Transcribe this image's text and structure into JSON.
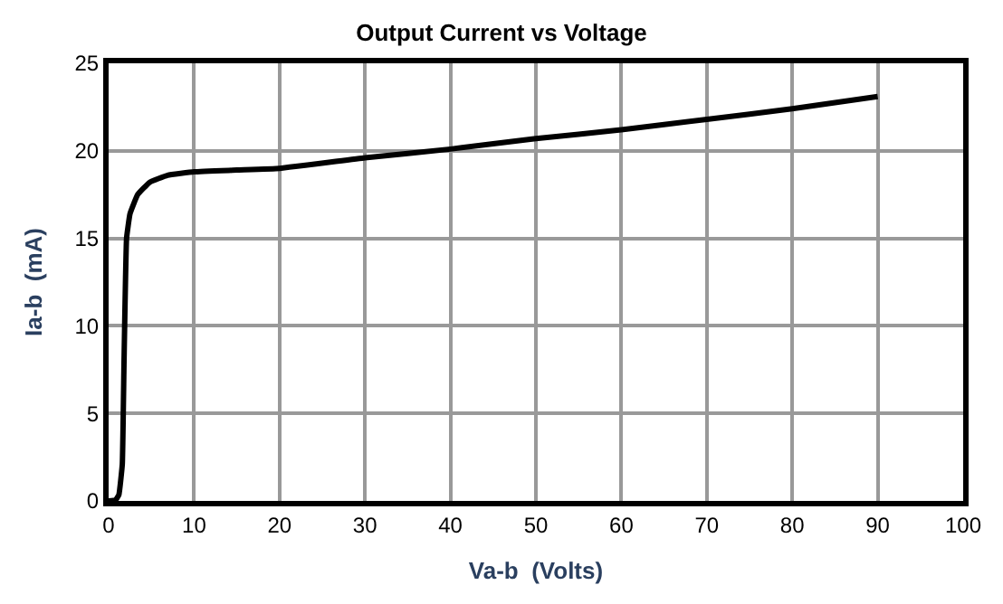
{
  "chart_data": {
    "type": "line",
    "title": "Output Current vs Voltage",
    "xlabel": "Va-b  (Volts)",
    "ylabel": "Ia-b  (mA)",
    "x": [
      0,
      0.8,
      1.2,
      1.6,
      1.8,
      2.1,
      2.5,
      3.4,
      4.8,
      6.9,
      10,
      15,
      20,
      30,
      40,
      50,
      60,
      70,
      80,
      90
    ],
    "series": [
      {
        "color": "#000000",
        "values": [
          0,
          0.05,
          0.35,
          2.1,
          7.9,
          15,
          16.4,
          17.5,
          18.2,
          18.6,
          18.8,
          18.9,
          19.0,
          19.6,
          20.1,
          20.7,
          21.2,
          21.8,
          22.4,
          23.1
        ]
      }
    ],
    "xlim": [
      0,
      100
    ],
    "xticks": [
      0,
      10,
      20,
      30,
      40,
      50,
      60,
      70,
      80,
      90,
      100
    ],
    "ylim": [
      0,
      25
    ],
    "yticks": [
      0,
      5,
      10,
      15,
      20,
      25
    ],
    "grid": true,
    "legend": false,
    "marker": "none",
    "line_style": "solid"
  }
}
